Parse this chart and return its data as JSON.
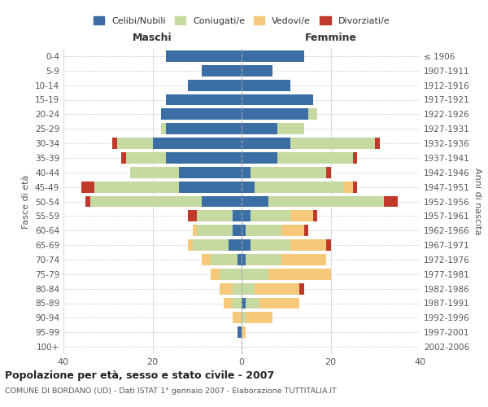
{
  "age_groups": [
    "0-4",
    "5-9",
    "10-14",
    "15-19",
    "20-24",
    "25-29",
    "30-34",
    "35-39",
    "40-44",
    "45-49",
    "50-54",
    "55-59",
    "60-64",
    "65-69",
    "70-74",
    "75-79",
    "80-84",
    "85-89",
    "90-94",
    "95-99",
    "100+"
  ],
  "birth_years": [
    "2002-2006",
    "1997-2001",
    "1992-1996",
    "1987-1991",
    "1982-1986",
    "1977-1981",
    "1972-1976",
    "1967-1971",
    "1962-1966",
    "1957-1961",
    "1952-1956",
    "1947-1951",
    "1942-1946",
    "1937-1941",
    "1932-1936",
    "1927-1931",
    "1922-1926",
    "1917-1921",
    "1912-1916",
    "1907-1911",
    "≤ 1906"
  ],
  "maschi": {
    "celibi": [
      17,
      9,
      12,
      17,
      18,
      17,
      20,
      17,
      14,
      14,
      9,
      2,
      2,
      3,
      1,
      0,
      0,
      0,
      0,
      1,
      0
    ],
    "coniugati": [
      0,
      0,
      0,
      0,
      0,
      1,
      8,
      9,
      11,
      19,
      25,
      8,
      8,
      8,
      6,
      5,
      2,
      2,
      0,
      0,
      0
    ],
    "vedovi": [
      0,
      0,
      0,
      0,
      0,
      0,
      0,
      0,
      0,
      0,
      0,
      0,
      1,
      1,
      2,
      2,
      3,
      2,
      2,
      0,
      0
    ],
    "divorziati": [
      0,
      0,
      0,
      0,
      0,
      0,
      1,
      1,
      0,
      3,
      1,
      2,
      0,
      0,
      0,
      0,
      0,
      0,
      0,
      0,
      0
    ]
  },
  "femmine": {
    "nubili": [
      14,
      7,
      11,
      16,
      15,
      8,
      11,
      8,
      2,
      3,
      6,
      2,
      1,
      2,
      1,
      0,
      0,
      1,
      0,
      0,
      0
    ],
    "coniugate": [
      0,
      0,
      0,
      0,
      2,
      6,
      19,
      17,
      17,
      20,
      26,
      9,
      8,
      9,
      8,
      6,
      3,
      3,
      1,
      0,
      0
    ],
    "vedove": [
      0,
      0,
      0,
      0,
      0,
      0,
      0,
      0,
      0,
      2,
      0,
      5,
      5,
      8,
      10,
      14,
      10,
      9,
      6,
      1,
      0
    ],
    "divorziate": [
      0,
      0,
      0,
      0,
      0,
      0,
      1,
      1,
      1,
      1,
      3,
      1,
      1,
      1,
      0,
      0,
      1,
      0,
      0,
      0,
      0
    ]
  },
  "colors": {
    "celibi": "#3a6ea5",
    "coniugati": "#c5d9a0",
    "vedovi": "#f5c87a",
    "divorziati": "#c0392b"
  },
  "xlim": 40,
  "title": "Popolazione per età, sesso e stato civile - 2007",
  "subtitle": "COMUNE DI BORDANO (UD) - Dati ISTAT 1° gennaio 2007 - Elaborazione TUTTITALIA.IT",
  "ylabel_left": "Fasce di età",
  "ylabel_right": "Anni di nascita",
  "xlabel_maschi": "Maschi",
  "xlabel_femmine": "Femmine",
  "background_color": "#ffffff",
  "grid_color": "#cccccc"
}
